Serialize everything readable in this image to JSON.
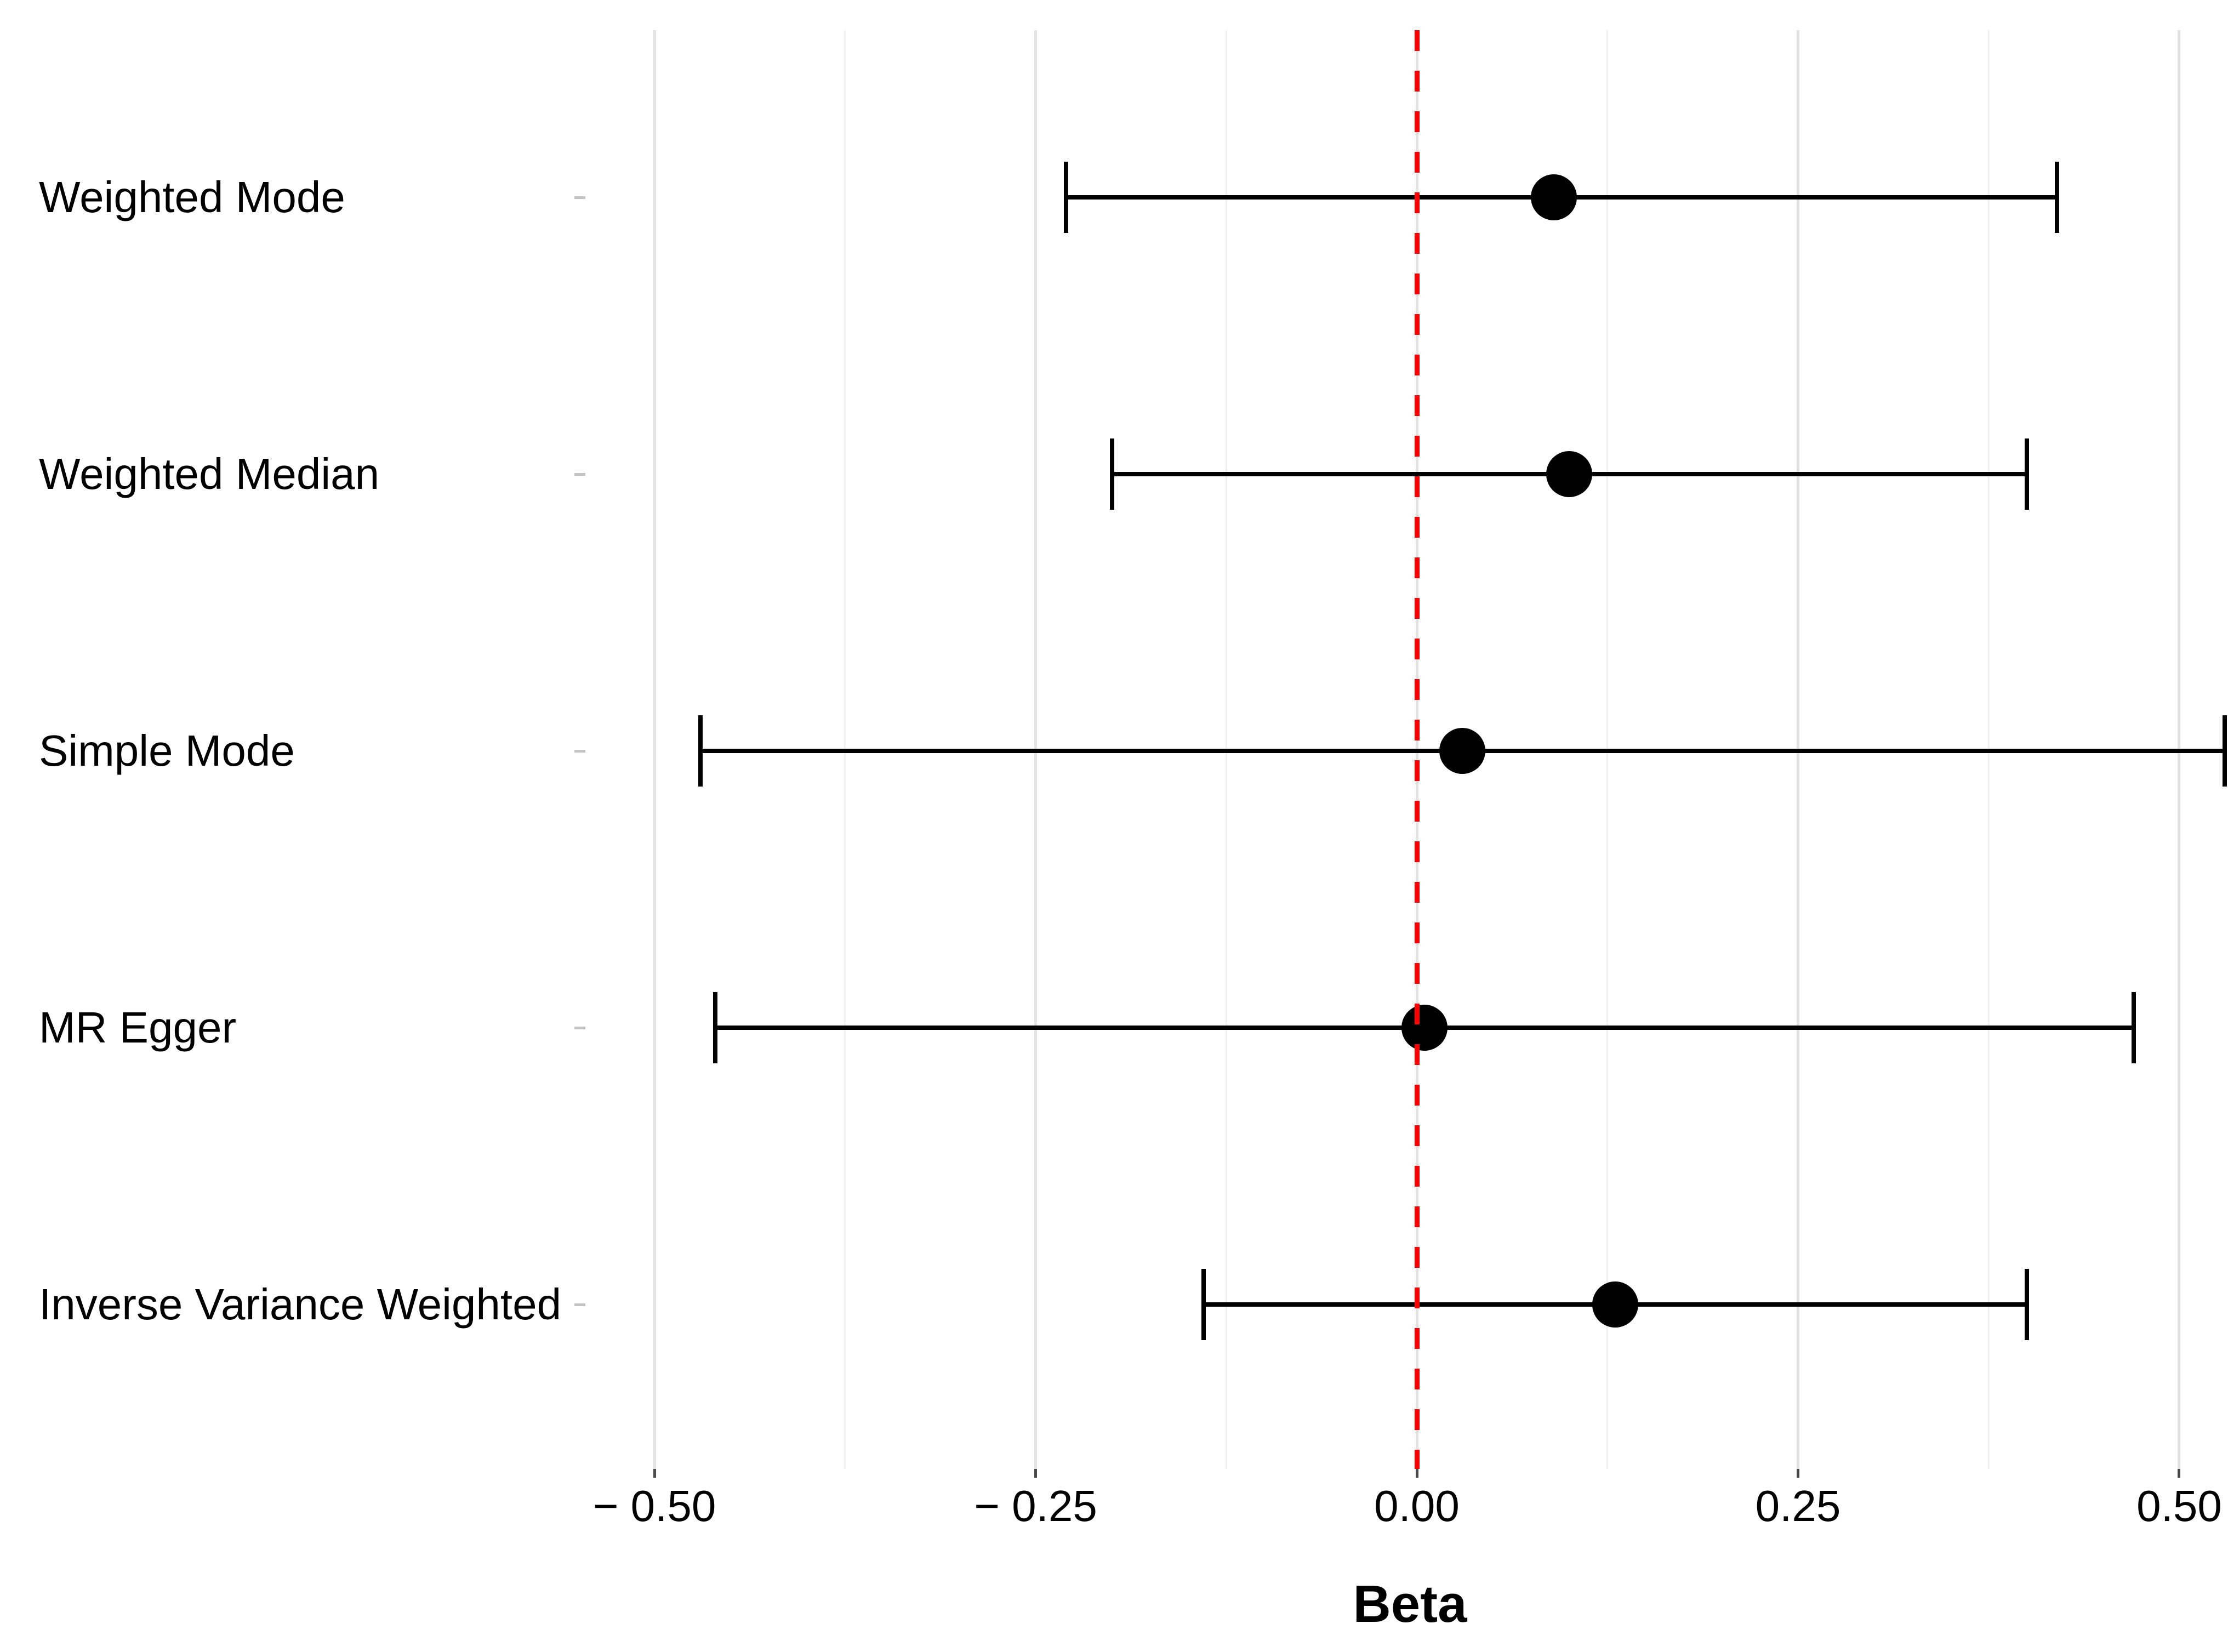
{
  "chart_data": {
    "type": "scatter",
    "subtype": "forest-plot",
    "title": "",
    "xlabel": "Beta",
    "ylabel": "",
    "xlim": [
      -0.541,
      0.532
    ],
    "grid": true,
    "legend": null,
    "x_major_ticks": [
      {
        "value": -0.5,
        "label": "− 0.50"
      },
      {
        "value": -0.25,
        "label": "− 0.25"
      },
      {
        "value": 0.0,
        "label": "0.00"
      },
      {
        "value": 0.25,
        "label": "0.25"
      },
      {
        "value": 0.5,
        "label": "0.50"
      }
    ],
    "x_minor_ticks": [
      -0.375,
      -0.125,
      0.125,
      0.375
    ],
    "reference_line": {
      "x": 0.0,
      "style": "dashed",
      "color": "#ff0000"
    },
    "rows": [
      {
        "label": "Weighted Mode",
        "beta": 0.09,
        "ci_low": -0.23,
        "ci_high": 0.42
      },
      {
        "label": "Weighted Median",
        "beta": 0.1,
        "ci_low": -0.2,
        "ci_high": 0.4
      },
      {
        "label": "Simple Mode",
        "beta": 0.03,
        "ci_low": -0.47,
        "ci_high": 0.53
      },
      {
        "label": "MR Egger",
        "beta": 0.005,
        "ci_low": -0.46,
        "ci_high": 0.47
      },
      {
        "label": "Inverse Variance Weighted",
        "beta": 0.13,
        "ci_low": -0.14,
        "ci_high": 0.4
      }
    ],
    "colors": {
      "point": "#000000",
      "error_bar": "#000000",
      "reference_line": "#ff0000",
      "gridline_major": "#e3e3e3",
      "gridline_minor": "#f0f0f0",
      "text": "#000000",
      "background": "#ffffff"
    }
  }
}
